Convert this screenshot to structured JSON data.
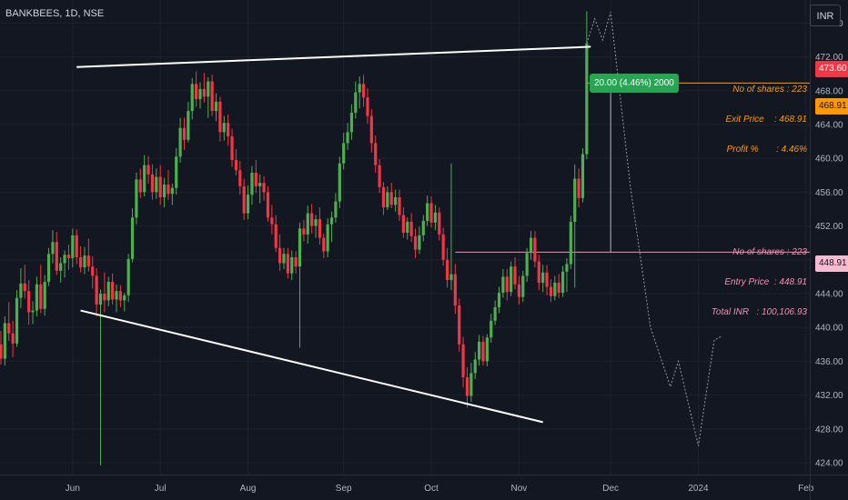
{
  "header": {
    "symbol": "BANKBEES, 1D, NSE",
    "currency": "INR"
  },
  "colors": {
    "background": "#131722",
    "up": "#4caf50",
    "down": "#f23645",
    "grid": "#1e222d",
    "exit": "#ff9800",
    "entry": "#f48fb1",
    "trendline": "#ffffff",
    "projection": "#9598a1"
  },
  "chart_data": {
    "type": "candlestick",
    "ylim": [
      422.6,
      478.3
    ],
    "y_ticks": [
      "476.00",
      "472.00",
      "468.00",
      "464.00",
      "460.00",
      "456.00",
      "452.00",
      "448.00",
      "444.00",
      "440.00",
      "436.00",
      "432.00",
      "428.00",
      "424.00"
    ],
    "x_ticks": [
      "Jun",
      "Jul",
      "Aug",
      "Sep",
      "Oct",
      "Nov",
      "Dec",
      "2024",
      "Feb"
    ],
    "x_tick_days": [
      18,
      40,
      62,
      86,
      108,
      130,
      153,
      175,
      202
    ],
    "candles": [
      {
        "d": 0,
        "o": 438.0,
        "h": 439.6,
        "l": 435.6,
        "c": 436.3
      },
      {
        "d": 1,
        "o": 436.3,
        "h": 441.3,
        "l": 435.5,
        "c": 440.5
      },
      {
        "d": 2,
        "o": 440.5,
        "h": 443.0,
        "l": 438.4,
        "c": 439.3
      },
      {
        "d": 3,
        "o": 439.3,
        "h": 440.8,
        "l": 436.5,
        "c": 438.1
      },
      {
        "d": 4,
        "o": 438.1,
        "h": 444.4,
        "l": 437.7,
        "c": 443.5
      },
      {
        "d": 5,
        "o": 443.5,
        "h": 447.0,
        "l": 442.3,
        "c": 445.2
      },
      {
        "d": 6,
        "o": 445.2,
        "h": 447.4,
        "l": 443.4,
        "c": 444.3
      },
      {
        "d": 7,
        "o": 444.3,
        "h": 445.6,
        "l": 440.3,
        "c": 441.8
      },
      {
        "d": 8,
        "o": 441.8,
        "h": 443.1,
        "l": 440.4,
        "c": 442.0
      },
      {
        "d": 9,
        "o": 442.0,
        "h": 446.0,
        "l": 441.3,
        "c": 445.1
      },
      {
        "d": 10,
        "o": 445.1,
        "h": 447.4,
        "l": 441.7,
        "c": 442.2
      },
      {
        "d": 11,
        "o": 442.2,
        "h": 446.2,
        "l": 441.4,
        "c": 445.4
      },
      {
        "d": 12,
        "o": 445.4,
        "h": 449.4,
        "l": 444.9,
        "c": 448.7
      },
      {
        "d": 13,
        "o": 448.7,
        "h": 451.5,
        "l": 447.6,
        "c": 450.1
      },
      {
        "d": 14,
        "o": 450.1,
        "h": 451.3,
        "l": 446.2,
        "c": 446.7
      },
      {
        "d": 15,
        "o": 446.7,
        "h": 448.3,
        "l": 445.3,
        "c": 447.6
      },
      {
        "d": 16,
        "o": 447.6,
        "h": 449.1,
        "l": 445.9,
        "c": 448.6
      },
      {
        "d": 17,
        "o": 448.6,
        "h": 449.8,
        "l": 446.8,
        "c": 448.2
      },
      {
        "d": 18,
        "o": 448.2,
        "h": 451.7,
        "l": 447.1,
        "c": 450.9
      },
      {
        "d": 19,
        "o": 450.9,
        "h": 451.6,
        "l": 447.5,
        "c": 448.3
      },
      {
        "d": 20,
        "o": 448.3,
        "h": 449.6,
        "l": 446.5,
        "c": 447.1
      },
      {
        "d": 21,
        "o": 447.1,
        "h": 449.5,
        "l": 446.3,
        "c": 448.5
      },
      {
        "d": 22,
        "o": 448.5,
        "h": 450.5,
        "l": 446.6,
        "c": 447.2
      },
      {
        "d": 23,
        "o": 447.2,
        "h": 448.4,
        "l": 444.6,
        "c": 446.1
      },
      {
        "d": 24,
        "o": 446.1,
        "h": 447.0,
        "l": 441.3,
        "c": 442.7
      },
      {
        "d": 25,
        "o": 442.7,
        "h": 444.5,
        "l": 423.7,
        "c": 444.0
      },
      {
        "d": 26,
        "o": 444.0,
        "h": 446.5,
        "l": 441.8,
        "c": 443.2
      },
      {
        "d": 27,
        "o": 443.2,
        "h": 446.0,
        "l": 442.5,
        "c": 445.4
      },
      {
        "d": 28,
        "o": 445.4,
        "h": 446.4,
        "l": 442.7,
        "c": 443.3
      },
      {
        "d": 29,
        "o": 443.3,
        "h": 445.1,
        "l": 441.8,
        "c": 444.3
      },
      {
        "d": 30,
        "o": 444.3,
        "h": 445.0,
        "l": 442.4,
        "c": 443.2
      },
      {
        "d": 31,
        "o": 443.2,
        "h": 444.1,
        "l": 441.9,
        "c": 443.8
      },
      {
        "d": 32,
        "o": 443.8,
        "h": 448.7,
        "l": 443.0,
        "c": 448.1
      },
      {
        "d": 33,
        "o": 448.1,
        "h": 454.1,
        "l": 447.7,
        "c": 453.0
      },
      {
        "d": 34,
        "o": 453.0,
        "h": 458.3,
        "l": 452.2,
        "c": 457.5
      },
      {
        "d": 35,
        "o": 457.5,
        "h": 458.8,
        "l": 455.3,
        "c": 456.0
      },
      {
        "d": 36,
        "o": 456.0,
        "h": 460.4,
        "l": 455.5,
        "c": 459.2
      },
      {
        "d": 37,
        "o": 459.2,
        "h": 460.3,
        "l": 457.0,
        "c": 458.1
      },
      {
        "d": 38,
        "o": 458.1,
        "h": 459.3,
        "l": 455.1,
        "c": 456.0
      },
      {
        "d": 39,
        "o": 456.0,
        "h": 458.8,
        "l": 455.2,
        "c": 457.8
      },
      {
        "d": 40,
        "o": 457.8,
        "h": 459.2,
        "l": 454.5,
        "c": 455.4
      },
      {
        "d": 41,
        "o": 455.4,
        "h": 457.7,
        "l": 454.2,
        "c": 456.9
      },
      {
        "d": 42,
        "o": 456.9,
        "h": 458.6,
        "l": 455.1,
        "c": 455.8
      },
      {
        "d": 43,
        "o": 455.8,
        "h": 457.0,
        "l": 454.5,
        "c": 456.5
      },
      {
        "d": 44,
        "o": 456.5,
        "h": 461.2,
        "l": 455.7,
        "c": 460.2
      },
      {
        "d": 45,
        "o": 460.2,
        "h": 464.8,
        "l": 459.5,
        "c": 463.6
      },
      {
        "d": 46,
        "o": 463.6,
        "h": 464.8,
        "l": 461.0,
        "c": 462.2
      },
      {
        "d": 47,
        "o": 462.2,
        "h": 466.7,
        "l": 461.9,
        "c": 465.6
      },
      {
        "d": 48,
        "o": 465.6,
        "h": 469.5,
        "l": 464.6,
        "c": 468.8
      },
      {
        "d": 49,
        "o": 468.8,
        "h": 470.3,
        "l": 466.1,
        "c": 467.0
      },
      {
        "d": 50,
        "o": 467.0,
        "h": 469.0,
        "l": 465.9,
        "c": 468.2
      },
      {
        "d": 51,
        "o": 468.2,
        "h": 470.1,
        "l": 466.6,
        "c": 467.3
      },
      {
        "d": 52,
        "o": 467.3,
        "h": 469.6,
        "l": 464.8,
        "c": 469.1
      },
      {
        "d": 53,
        "o": 469.1,
        "h": 469.9,
        "l": 465.0,
        "c": 465.6
      },
      {
        "d": 54,
        "o": 465.6,
        "h": 467.7,
        "l": 464.4,
        "c": 466.7
      },
      {
        "d": 55,
        "o": 466.7,
        "h": 467.3,
        "l": 462.0,
        "c": 463.1
      },
      {
        "d": 56,
        "o": 463.1,
        "h": 465.0,
        "l": 462.1,
        "c": 464.2
      },
      {
        "d": 57,
        "o": 464.2,
        "h": 465.2,
        "l": 461.5,
        "c": 462.6
      },
      {
        "d": 58,
        "o": 462.6,
        "h": 463.5,
        "l": 459.0,
        "c": 459.8
      },
      {
        "d": 59,
        "o": 459.8,
        "h": 461.1,
        "l": 458.0,
        "c": 458.6
      },
      {
        "d": 60,
        "o": 458.6,
        "h": 459.7,
        "l": 455.7,
        "c": 456.7
      },
      {
        "d": 61,
        "o": 456.7,
        "h": 457.6,
        "l": 452.7,
        "c": 453.5
      },
      {
        "d": 62,
        "o": 453.5,
        "h": 456.8,
        "l": 452.8,
        "c": 455.7
      },
      {
        "d": 63,
        "o": 455.7,
        "h": 459.1,
        "l": 454.5,
        "c": 458.3
      },
      {
        "d": 64,
        "o": 458.3,
        "h": 459.8,
        "l": 455.9,
        "c": 456.7
      },
      {
        "d": 65,
        "o": 456.7,
        "h": 458.1,
        "l": 454.7,
        "c": 457.1
      },
      {
        "d": 66,
        "o": 457.1,
        "h": 457.9,
        "l": 455.0,
        "c": 456.0
      },
      {
        "d": 67,
        "o": 456.0,
        "h": 456.7,
        "l": 452.5,
        "c": 453.0
      },
      {
        "d": 68,
        "o": 453.0,
        "h": 454.5,
        "l": 451.0,
        "c": 452.2
      },
      {
        "d": 69,
        "o": 452.2,
        "h": 453.3,
        "l": 448.9,
        "c": 449.4
      },
      {
        "d": 70,
        "o": 449.4,
        "h": 451.0,
        "l": 446.7,
        "c": 447.6
      },
      {
        "d": 71,
        "o": 447.6,
        "h": 449.4,
        "l": 446.9,
        "c": 448.7
      },
      {
        "d": 72,
        "o": 448.7,
        "h": 449.4,
        "l": 445.8,
        "c": 446.4
      },
      {
        "d": 73,
        "o": 446.4,
        "h": 449.1,
        "l": 445.6,
        "c": 448.3
      },
      {
        "d": 74,
        "o": 448.3,
        "h": 449.0,
        "l": 446.4,
        "c": 447.2
      },
      {
        "d": 75,
        "o": 447.2,
        "h": 452.4,
        "l": 437.6,
        "c": 451.7
      },
      {
        "d": 76,
        "o": 451.7,
        "h": 452.7,
        "l": 450.2,
        "c": 451.0
      },
      {
        "d": 77,
        "o": 451.0,
        "h": 454.4,
        "l": 449.9,
        "c": 453.5
      },
      {
        "d": 78,
        "o": 453.5,
        "h": 454.6,
        "l": 451.1,
        "c": 452.0
      },
      {
        "d": 79,
        "o": 452.0,
        "h": 453.3,
        "l": 450.6,
        "c": 452.8
      },
      {
        "d": 80,
        "o": 452.8,
        "h": 454.2,
        "l": 449.8,
        "c": 450.6
      },
      {
        "d": 81,
        "o": 450.6,
        "h": 451.1,
        "l": 448.2,
        "c": 449.0
      },
      {
        "d": 82,
        "o": 449.0,
        "h": 452.9,
        "l": 448.3,
        "c": 452.2
      },
      {
        "d": 83,
        "o": 452.2,
        "h": 453.7,
        "l": 450.1,
        "c": 453.0
      },
      {
        "d": 84,
        "o": 453.0,
        "h": 455.9,
        "l": 452.4,
        "c": 454.9
      },
      {
        "d": 85,
        "o": 454.9,
        "h": 460.2,
        "l": 454.1,
        "c": 459.4
      },
      {
        "d": 86,
        "o": 459.4,
        "h": 463.0,
        "l": 458.7,
        "c": 461.8
      },
      {
        "d": 87,
        "o": 461.8,
        "h": 464.2,
        "l": 461.0,
        "c": 463.1
      },
      {
        "d": 88,
        "o": 463.1,
        "h": 466.4,
        "l": 462.2,
        "c": 465.4
      },
      {
        "d": 89,
        "o": 465.4,
        "h": 469.1,
        "l": 464.7,
        "c": 467.8
      },
      {
        "d": 90,
        "o": 467.8,
        "h": 469.7,
        "l": 465.9,
        "c": 468.8
      },
      {
        "d": 91,
        "o": 468.8,
        "h": 469.9,
        "l": 466.1,
        "c": 467.2
      },
      {
        "d": 92,
        "o": 467.2,
        "h": 468.3,
        "l": 464.1,
        "c": 465.0
      },
      {
        "d": 93,
        "o": 465.0,
        "h": 465.8,
        "l": 460.7,
        "c": 461.8
      },
      {
        "d": 94,
        "o": 461.8,
        "h": 462.7,
        "l": 458.3,
        "c": 459.2
      },
      {
        "d": 95,
        "o": 459.2,
        "h": 459.9,
        "l": 455.9,
        "c": 456.6
      },
      {
        "d": 96,
        "o": 456.6,
        "h": 457.2,
        "l": 453.3,
        "c": 454.2
      },
      {
        "d": 97,
        "o": 454.2,
        "h": 456.7,
        "l": 453.9,
        "c": 456.0
      },
      {
        "d": 98,
        "o": 456.0,
        "h": 457.1,
        "l": 454.1,
        "c": 454.5
      },
      {
        "d": 99,
        "o": 454.5,
        "h": 456.3,
        "l": 453.7,
        "c": 455.4
      },
      {
        "d": 100,
        "o": 455.4,
        "h": 456.3,
        "l": 452.6,
        "c": 453.3
      },
      {
        "d": 101,
        "o": 453.3,
        "h": 454.2,
        "l": 450.6,
        "c": 451.2
      },
      {
        "d": 102,
        "o": 451.2,
        "h": 453.0,
        "l": 450.4,
        "c": 452.5
      },
      {
        "d": 103,
        "o": 452.5,
        "h": 453.5,
        "l": 450.1,
        "c": 450.8
      },
      {
        "d": 104,
        "o": 450.8,
        "h": 451.7,
        "l": 448.2,
        "c": 449.2
      },
      {
        "d": 105,
        "o": 449.2,
        "h": 451.9,
        "l": 448.7,
        "c": 450.9
      },
      {
        "d": 106,
        "o": 450.9,
        "h": 453.3,
        "l": 450.2,
        "c": 452.6
      },
      {
        "d": 107,
        "o": 452.6,
        "h": 455.6,
        "l": 452.0,
        "c": 454.7
      },
      {
        "d": 108,
        "o": 454.7,
        "h": 455.5,
        "l": 451.8,
        "c": 452.4
      },
      {
        "d": 109,
        "o": 452.4,
        "h": 454.5,
        "l": 451.5,
        "c": 453.6
      },
      {
        "d": 110,
        "o": 453.6,
        "h": 454.2,
        "l": 450.3,
        "c": 451.0
      },
      {
        "d": 111,
        "o": 451.0,
        "h": 451.8,
        "l": 447.3,
        "c": 448.0
      },
      {
        "d": 112,
        "o": 448.0,
        "h": 449.4,
        "l": 444.7,
        "c": 445.6
      },
      {
        "d": 113,
        "o": 445.6,
        "h": 459.4,
        "l": 444.4,
        "c": 446.3
      },
      {
        "d": 114,
        "o": 446.3,
        "h": 447.5,
        "l": 441.6,
        "c": 442.6
      },
      {
        "d": 115,
        "o": 442.6,
        "h": 443.4,
        "l": 437.1,
        "c": 438.0
      },
      {
        "d": 116,
        "o": 438.0,
        "h": 438.9,
        "l": 432.9,
        "c": 434.1
      },
      {
        "d": 117,
        "o": 434.1,
        "h": 435.3,
        "l": 430.5,
        "c": 431.9
      },
      {
        "d": 118,
        "o": 431.9,
        "h": 435.8,
        "l": 431.2,
        "c": 434.6
      },
      {
        "d": 119,
        "o": 434.6,
        "h": 437.1,
        "l": 433.9,
        "c": 436.2
      },
      {
        "d": 120,
        "o": 436.2,
        "h": 439.1,
        "l": 435.5,
        "c": 438.3
      },
      {
        "d": 121,
        "o": 438.3,
        "h": 439.0,
        "l": 435.5,
        "c": 436.0
      },
      {
        "d": 122,
        "o": 436.0,
        "h": 439.2,
        "l": 435.4,
        "c": 438.8
      },
      {
        "d": 123,
        "o": 438.8,
        "h": 441.6,
        "l": 438.2,
        "c": 440.8
      },
      {
        "d": 124,
        "o": 440.8,
        "h": 443.2,
        "l": 440.3,
        "c": 442.4
      },
      {
        "d": 125,
        "o": 442.4,
        "h": 444.8,
        "l": 441.7,
        "c": 444.1
      },
      {
        "d": 126,
        "o": 444.1,
        "h": 446.9,
        "l": 443.5,
        "c": 446.0
      },
      {
        "d": 127,
        "o": 446.0,
        "h": 446.9,
        "l": 443.2,
        "c": 444.2
      },
      {
        "d": 128,
        "o": 444.2,
        "h": 447.8,
        "l": 443.7,
        "c": 447.2
      },
      {
        "d": 129,
        "o": 447.2,
        "h": 448.3,
        "l": 444.5,
        "c": 445.1
      },
      {
        "d": 130,
        "o": 445.1,
        "h": 446.1,
        "l": 442.7,
        "c": 443.6
      },
      {
        "d": 131,
        "o": 443.6,
        "h": 446.7,
        "l": 443.0,
        "c": 446.1
      },
      {
        "d": 132,
        "o": 446.1,
        "h": 449.4,
        "l": 445.4,
        "c": 448.8
      },
      {
        "d": 133,
        "o": 448.8,
        "h": 451.4,
        "l": 448.0,
        "c": 450.6
      },
      {
        "d": 134,
        "o": 450.6,
        "h": 451.4,
        "l": 447.1,
        "c": 447.8
      },
      {
        "d": 135,
        "o": 447.8,
        "h": 448.6,
        "l": 444.4,
        "c": 445.3
      },
      {
        "d": 136,
        "o": 445.3,
        "h": 447.4,
        "l": 444.2,
        "c": 446.5
      },
      {
        "d": 137,
        "o": 446.5,
        "h": 447.4,
        "l": 443.8,
        "c": 444.8
      },
      {
        "d": 138,
        "o": 444.8,
        "h": 445.7,
        "l": 443.0,
        "c": 443.7
      },
      {
        "d": 139,
        "o": 443.7,
        "h": 446.1,
        "l": 443.2,
        "c": 445.3
      },
      {
        "d": 140,
        "o": 445.3,
        "h": 446.3,
        "l": 443.5,
        "c": 444.1
      },
      {
        "d": 141,
        "o": 444.1,
        "h": 447.3,
        "l": 443.6,
        "c": 446.6
      },
      {
        "d": 142,
        "o": 446.6,
        "h": 448.2,
        "l": 444.2,
        "c": 447.5
      },
      {
        "d": 143,
        "o": 447.5,
        "h": 453.2,
        "l": 446.9,
        "c": 452.5
      },
      {
        "d": 144,
        "o": 452.5,
        "h": 459.3,
        "l": 444.7,
        "c": 457.6
      },
      {
        "d": 145,
        "o": 457.6,
        "h": 458.8,
        "l": 454.2,
        "c": 455.3
      },
      {
        "d": 146,
        "o": 455.3,
        "h": 461.2,
        "l": 454.8,
        "c": 460.5
      },
      {
        "d": 147,
        "o": 460.5,
        "h": 477.4,
        "l": 459.9,
        "c": 473.6
      }
    ],
    "trendline_upper": [
      {
        "d": 19,
        "v": 470.8
      },
      {
        "d": 148,
        "v": 473.2
      }
    ],
    "trendline_lower": [
      {
        "d": 20,
        "v": 442.0
      },
      {
        "d": 136,
        "v": 428.8
      }
    ],
    "projection_path": [
      {
        "d": 147,
        "v": 473.6
      },
      {
        "d": 149,
        "v": 476.5
      },
      {
        "d": 151,
        "v": 474.0
      },
      {
        "d": 153,
        "v": 477.3
      },
      {
        "d": 155,
        "v": 468.9
      },
      {
        "d": 158,
        "v": 456.5
      },
      {
        "d": 163,
        "v": 440.0
      },
      {
        "d": 168,
        "v": 433.0
      },
      {
        "d": 170,
        "v": 436.0
      },
      {
        "d": 175,
        "v": 426.0
      },
      {
        "d": 179,
        "v": 438.5
      },
      {
        "d": 181,
        "v": 439.0
      }
    ],
    "move_marker": {
      "d": 153,
      "from": 448.91,
      "to": 468.91
    },
    "entry": {
      "price": 448.91,
      "price_label": "448.91",
      "start_d": 114
    },
    "exit": {
      "price": 468.91,
      "price_label": "468.91",
      "start_d": 147
    },
    "last": {
      "price": 473.6,
      "price_label": "473.60"
    }
  },
  "labels": {
    "move": "20.00 (4.46%) 2000",
    "exit_note": [
      "No of shares : 223",
      "Exit Price    : 468.91",
      "Profit %       : 4.46%"
    ],
    "entry_note": [
      "No of shares : 223",
      "Entry Price  : 448.91",
      "Total INR   : 100,106.93"
    ]
  }
}
